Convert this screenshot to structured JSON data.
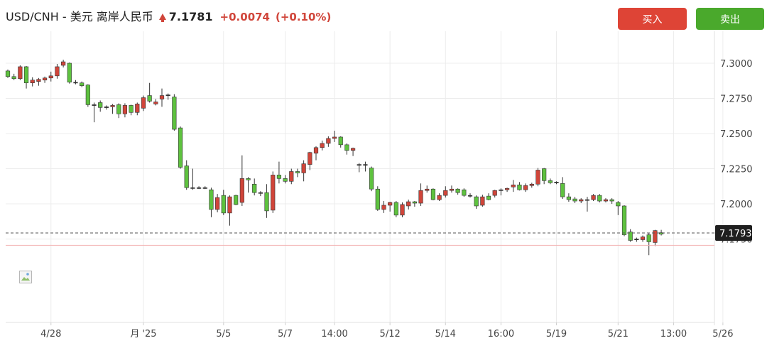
{
  "header": {
    "pair_name": "USD/CNH - 美元 离岸人民币",
    "price": "7.1781",
    "change": "+0.0074",
    "change_pct": "(+0.10%)",
    "buy_label": "买入",
    "sell_label": "卖出"
  },
  "colors": {
    "up": "#d0453a",
    "down": "#5ec23f",
    "buy": "#de4436",
    "sell": "#4aa92c",
    "last_price_label": "#1f1f1f",
    "alert_line": "#f2b3b3"
  },
  "chart_data": {
    "type": "candlestick",
    "y_ticks": [
      "7.3000",
      "7.2750",
      "7.2500",
      "7.2250",
      "7.2000",
      "7.1750"
    ],
    "ylim": [
      7.1625,
      7.3125
    ],
    "x_tick_labels": [
      "4/28",
      "月 '25",
      "5/5",
      "5/7",
      "14:00",
      "5/12",
      "5/14",
      "16:00",
      "5/19",
      "5/21",
      "13:00",
      "5/26"
    ],
    "x_tick_index": [
      7,
      22,
      35,
      45,
      53,
      62,
      71,
      80,
      89,
      99,
      108,
      116
    ],
    "current_price_label": "7.1793",
    "current_price": 7.1793,
    "alert_level": 7.1705,
    "candles": [
      [
        7.2945,
        7.2955,
        7.2895,
        7.2905
      ],
      [
        7.2905,
        7.2925,
        7.288,
        7.289
      ],
      [
        7.289,
        7.2985,
        7.288,
        7.2975
      ],
      [
        7.2975,
        7.298,
        7.282,
        7.286
      ],
      [
        7.286,
        7.29,
        7.2835,
        7.288
      ],
      [
        7.287,
        7.2895,
        7.284,
        7.2885
      ],
      [
        7.288,
        7.2905,
        7.286,
        7.2895
      ],
      [
        7.2895,
        7.294,
        7.287,
        7.291
      ],
      [
        7.291,
        7.2995,
        7.289,
        7.2975
      ],
      [
        7.2985,
        7.3025,
        7.297,
        7.301
      ],
      [
        7.3,
        7.3005,
        7.2855,
        7.2865
      ],
      [
        7.2865,
        7.288,
        7.285,
        7.286
      ],
      [
        7.286,
        7.287,
        7.283,
        7.284
      ],
      [
        7.2845,
        7.285,
        7.269,
        7.2705
      ],
      [
        7.2705,
        7.272,
        7.258,
        7.27
      ],
      [
        7.272,
        7.2735,
        7.2655,
        7.2685
      ],
      [
        7.2685,
        7.27,
        7.267,
        7.269
      ],
      [
        7.269,
        7.271,
        7.264,
        7.27
      ],
      [
        7.2705,
        7.2715,
        7.261,
        7.264
      ],
      [
        7.264,
        7.2715,
        7.2615,
        7.27
      ],
      [
        7.27,
        7.2705,
        7.263,
        7.265
      ],
      [
        7.265,
        7.272,
        7.263,
        7.271
      ],
      [
        7.268,
        7.277,
        7.266,
        7.2755
      ],
      [
        7.277,
        7.286,
        7.272,
        7.273
      ],
      [
        7.271,
        7.2745,
        7.27,
        7.2725
      ],
      [
        7.2745,
        7.282,
        7.269,
        7.277
      ],
      [
        7.277,
        7.2785,
        7.274,
        7.2775
      ],
      [
        7.276,
        7.278,
        7.252,
        7.253
      ],
      [
        7.254,
        7.255,
        7.225,
        7.226
      ],
      [
        7.227,
        7.231,
        7.21,
        7.2115
      ],
      [
        7.211,
        7.225,
        7.21,
        7.2115
      ],
      [
        7.2115,
        7.2125,
        7.2105,
        7.2115
      ],
      [
        7.2115,
        7.2125,
        7.2105,
        7.2115
      ],
      [
        7.21,
        7.2115,
        7.1905,
        7.196
      ],
      [
        7.196,
        7.207,
        7.194,
        7.2045
      ],
      [
        7.206,
        7.21,
        7.192,
        7.1935
      ],
      [
        7.1935,
        7.206,
        7.1845,
        7.205
      ],
      [
        7.206,
        7.2065,
        7.199,
        7.1995
      ],
      [
        7.201,
        7.2345,
        7.1985,
        7.218
      ],
      [
        7.218,
        7.219,
        7.208,
        7.217
      ],
      [
        7.214,
        7.218,
        7.206,
        7.208
      ],
      [
        7.208,
        7.209,
        7.2055,
        7.208
      ],
      [
        7.208,
        7.214,
        7.19,
        7.195
      ],
      [
        7.1955,
        7.223,
        7.1935,
        7.2205
      ],
      [
        7.2205,
        7.23,
        7.2145,
        7.218
      ],
      [
        7.218,
        7.2205,
        7.2145,
        7.216
      ],
      [
        7.216,
        7.225,
        7.214,
        7.223
      ],
      [
        7.223,
        7.225,
        7.219,
        7.222
      ],
      [
        7.222,
        7.231,
        7.216,
        7.2285
      ],
      [
        7.228,
        7.237,
        7.224,
        7.2365
      ],
      [
        7.236,
        7.241,
        7.231,
        7.24
      ],
      [
        7.24,
        7.245,
        7.238,
        7.243
      ],
      [
        7.243,
        7.248,
        7.2405,
        7.2465
      ],
      [
        7.2465,
        7.252,
        7.244,
        7.2475
      ],
      [
        7.2475,
        7.248,
        7.24,
        7.242
      ],
      [
        7.242,
        7.243,
        7.235,
        7.238
      ],
      [
        7.238,
        7.24,
        7.234,
        7.2395
      ],
      [
        7.228,
        7.229,
        7.2225,
        7.228
      ],
      [
        7.228,
        7.23,
        7.223,
        7.2275
      ],
      [
        7.2255,
        7.2265,
        7.209,
        7.2105
      ],
      [
        7.2105,
        7.2125,
        7.195,
        7.196
      ],
      [
        7.196,
        7.202,
        7.1935,
        7.199
      ],
      [
        7.199,
        7.2015,
        7.1945,
        7.201
      ],
      [
        7.201,
        7.202,
        7.1905,
        7.192
      ],
      [
        7.192,
        7.201,
        7.1905,
        7.1995
      ],
      [
        7.1985,
        7.203,
        7.196,
        7.2015
      ],
      [
        7.2015,
        7.202,
        7.198,
        7.2005
      ],
      [
        7.2005,
        7.2145,
        7.1985,
        7.2095
      ],
      [
        7.2095,
        7.213,
        7.208,
        7.2105
      ],
      [
        7.2105,
        7.211,
        7.2025,
        7.203
      ],
      [
        7.203,
        7.2075,
        7.202,
        7.206
      ],
      [
        7.206,
        7.2125,
        7.2045,
        7.2095
      ],
      [
        7.2095,
        7.213,
        7.208,
        7.2105
      ],
      [
        7.2105,
        7.211,
        7.2065,
        7.208
      ],
      [
        7.21,
        7.211,
        7.205,
        7.206
      ],
      [
        7.206,
        7.2075,
        7.2045,
        7.2055
      ],
      [
        7.205,
        7.206,
        7.1965,
        7.1985
      ],
      [
        7.199,
        7.2065,
        7.198,
        7.205
      ],
      [
        7.2055,
        7.2075,
        7.2025,
        7.203
      ],
      [
        7.206,
        7.21,
        7.2045,
        7.2095
      ],
      [
        7.2095,
        7.211,
        7.206,
        7.21
      ],
      [
        7.21,
        7.2115,
        7.2085,
        7.211
      ],
      [
        7.212,
        7.217,
        7.2085,
        7.2135
      ],
      [
        7.2135,
        7.2155,
        7.2095,
        7.21
      ],
      [
        7.21,
        7.2145,
        7.2085,
        7.213
      ],
      [
        7.213,
        7.215,
        7.2115,
        7.214
      ],
      [
        7.214,
        7.2255,
        7.2125,
        7.224
      ],
      [
        7.225,
        7.2255,
        7.214,
        7.2165
      ],
      [
        7.2165,
        7.218,
        7.214,
        7.215
      ],
      [
        7.2155,
        7.216,
        7.214,
        7.215
      ],
      [
        7.2145,
        7.219,
        7.2035,
        7.205
      ],
      [
        7.205,
        7.2075,
        7.2015,
        7.203
      ],
      [
        7.2035,
        7.205,
        7.2005,
        7.202
      ],
      [
        7.202,
        7.204,
        7.2005,
        7.203
      ],
      [
        7.203,
        7.205,
        7.1945,
        7.2025
      ],
      [
        7.203,
        7.207,
        7.202,
        7.206
      ],
      [
        7.206,
        7.207,
        7.201,
        7.202
      ],
      [
        7.202,
        7.204,
        7.201,
        7.203
      ],
      [
        7.203,
        7.204,
        7.2,
        7.202
      ],
      [
        7.201,
        7.202,
        7.192,
        7.1985
      ],
      [
        7.1985,
        7.199,
        7.177,
        7.178
      ],
      [
        7.18,
        7.182,
        7.173,
        7.174
      ],
      [
        7.1745,
        7.176,
        7.173,
        7.175
      ],
      [
        7.1745,
        7.1775,
        7.173,
        7.1765
      ],
      [
        7.178,
        7.179,
        7.1635,
        7.173
      ],
      [
        7.1725,
        7.1815,
        7.17,
        7.181
      ],
      [
        7.1795,
        7.1815,
        7.1775,
        7.1785
      ]
    ]
  }
}
